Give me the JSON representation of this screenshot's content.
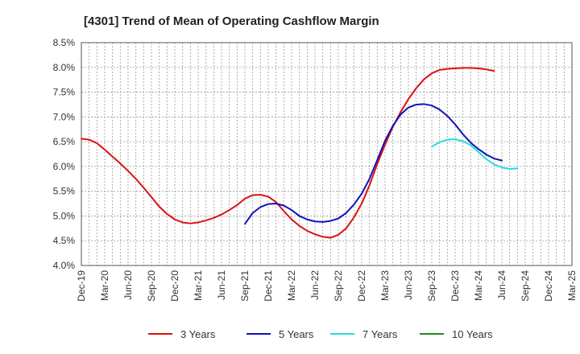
{
  "chart_data": {
    "type": "line",
    "title": "[4301]  Trend of Mean of Operating Cashflow Margin",
    "xlabel": "",
    "ylabel": "",
    "ylim": [
      4.0,
      8.5
    ],
    "y_ticks": [
      "4.0%",
      "4.5%",
      "5.0%",
      "5.5%",
      "6.0%",
      "6.5%",
      "7.0%",
      "7.5%",
      "8.0%",
      "8.5%"
    ],
    "y_tick_values": [
      4.0,
      4.5,
      5.0,
      5.5,
      6.0,
      6.5,
      7.0,
      7.5,
      8.0,
      8.5
    ],
    "x_ticks": [
      "Dec-19",
      "Mar-20",
      "Jun-20",
      "Sep-20",
      "Dec-20",
      "Mar-21",
      "Jun-21",
      "Sep-21",
      "Dec-21",
      "Mar-22",
      "Jun-22",
      "Sep-22",
      "Dec-22",
      "Mar-23",
      "Jun-23",
      "Sep-23",
      "Dec-23",
      "Mar-24",
      "Jun-24",
      "Sep-24",
      "Dec-24",
      "Mar-25"
    ],
    "x_range_quarters": [
      0,
      21
    ],
    "grid": true,
    "legend_position": "bottom",
    "series": [
      {
        "name": "3 Years",
        "color": "#dd1111",
        "start_quarter": 0,
        "values": [
          6.56,
          6.54,
          6.47,
          6.34,
          6.2,
          6.06,
          5.91,
          5.75,
          5.57,
          5.38,
          5.19,
          5.04,
          4.93,
          4.87,
          4.85,
          4.87,
          4.91,
          4.96,
          5.03,
          5.12,
          5.22,
          5.35,
          5.42,
          5.43,
          5.39,
          5.28,
          5.1,
          4.93,
          4.8,
          4.7,
          4.63,
          4.58,
          4.56,
          4.62,
          4.75,
          4.97,
          5.25,
          5.62,
          6.05,
          6.44,
          6.8,
          7.1,
          7.36,
          7.58,
          7.76,
          7.88,
          7.95,
          7.97,
          7.98,
          7.99,
          7.99,
          7.98,
          7.96,
          7.93
        ]
      },
      {
        "name": "5 Years",
        "color": "#1111bb",
        "start_quarter": 7,
        "values": [
          4.84,
          5.06,
          5.18,
          5.24,
          5.25,
          5.21,
          5.12,
          5.0,
          4.93,
          4.89,
          4.88,
          4.9,
          4.95,
          5.06,
          5.23,
          5.45,
          5.75,
          6.13,
          6.52,
          6.82,
          7.05,
          7.19,
          7.25,
          7.26,
          7.23,
          7.15,
          7.02,
          6.85,
          6.65,
          6.48,
          6.35,
          6.24,
          6.16,
          6.12
        ]
      },
      {
        "name": "7 Years",
        "color": "#22dddd",
        "start_quarter": 15,
        "values": [
          6.4,
          6.49,
          6.54,
          6.55,
          6.51,
          6.43,
          6.29,
          6.15,
          6.04,
          5.98,
          5.95,
          5.96
        ]
      },
      {
        "name": "10 Years",
        "color": "#228822",
        "start_quarter": 15,
        "values": []
      }
    ]
  }
}
